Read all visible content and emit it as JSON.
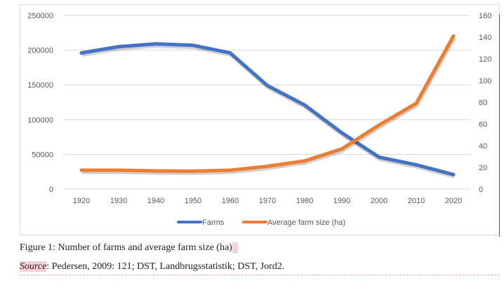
{
  "chart_data": {
    "type": "line",
    "title": "",
    "x": [
      1920,
      1930,
      1940,
      1950,
      1960,
      1970,
      1980,
      1990,
      2000,
      2010,
      2020
    ],
    "series": [
      {
        "name": "Farms",
        "axis": "left",
        "color": "#4472c4",
        "values": [
          196000,
          205000,
          209000,
          207000,
          196000,
          149000,
          121000,
          81000,
          46000,
          35000,
          21000
        ]
      },
      {
        "name": "Average farm size (ha)",
        "axis": "right",
        "color": "#ed7d31",
        "values": [
          17.4,
          17.4,
          16.8,
          16.5,
          17.4,
          21,
          26,
          37,
          59,
          79,
          141
        ]
      }
    ],
    "left_axis": {
      "ylim": [
        0,
        250000
      ],
      "ticks": [
        "0",
        "50000",
        "100000",
        "150000",
        "200000",
        "250000"
      ]
    },
    "right_axis": {
      "ylim": [
        0,
        160
      ],
      "ticks": [
        "0",
        "20",
        "40",
        "60",
        "80",
        "100",
        "120",
        "140",
        "160"
      ]
    },
    "x_ticks": [
      "1920",
      "1930",
      "1940",
      "1950",
      "1960",
      "1970",
      "1980",
      "1990",
      "2000",
      "2010",
      "2020"
    ],
    "grid": true,
    "legend": "bottom"
  },
  "caption": {
    "figure": "Figure 1: Number of farms and average farm size (ha)",
    "source_label": "Source",
    "source_text": ": Pedersen, 2009: 121; DST, Landbrugsstatistik; DST, Jord2."
  }
}
